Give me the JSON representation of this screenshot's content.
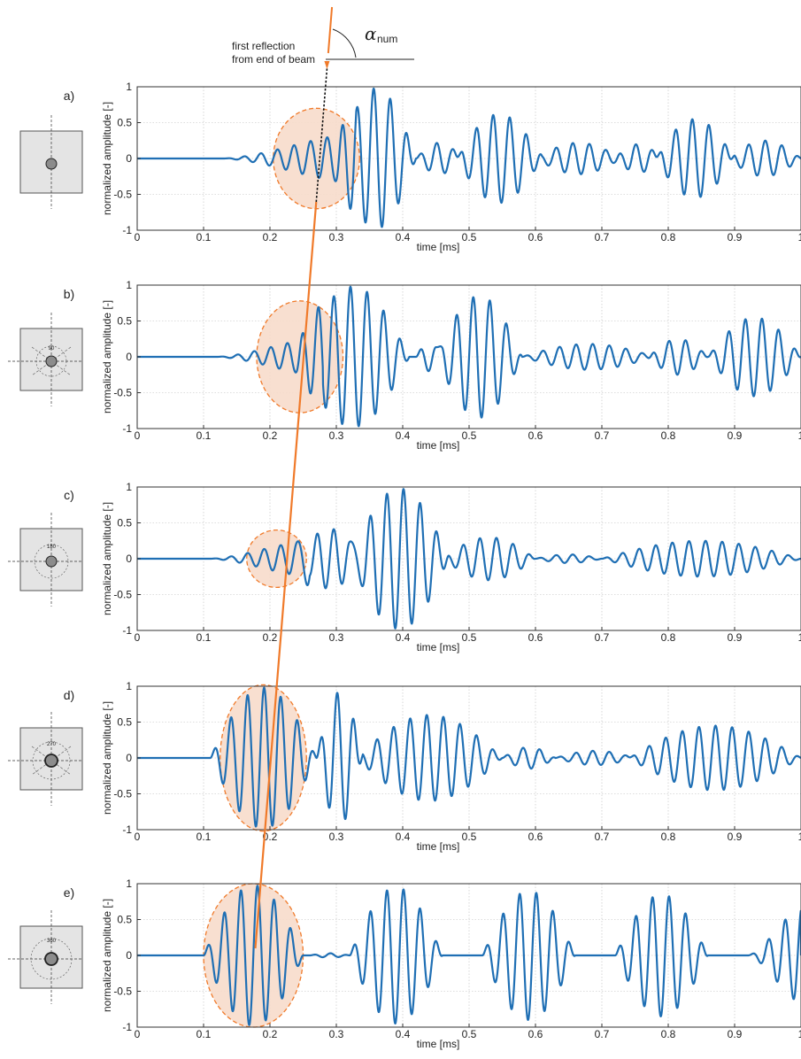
{
  "annotation": {
    "line1": "first reflection",
    "line2": "from end of beam",
    "angle_symbol": "α",
    "angle_subscript": "num"
  },
  "colors": {
    "signal": "#1f6fb4",
    "highlight_fill": "#f7dccb",
    "highlight_stroke": "#f07a2a",
    "trend_line": "#f07a2a",
    "axis": "#333333",
    "inset_fill": "#e4e4e4",
    "bar_fill": "#8c8c8c"
  },
  "icons": [
    "cross-section-icon"
  ],
  "chart_data": [
    {
      "type": "line",
      "panel": "a)",
      "inset_label": "",
      "xlabel": "time [ms]",
      "ylabel": "normalized amplitude [-]",
      "xlim": [
        0,
        1
      ],
      "ylim": [
        -1,
        1
      ],
      "xticks": [
        "0",
        "0.1",
        "0.2",
        "0.3",
        "0.4",
        "0.5",
        "0.6",
        "0.7",
        "0.8",
        "0.9",
        "1"
      ],
      "yticks": [
        "1",
        "0.5",
        "0",
        "-0.5",
        "-1"
      ],
      "grid": true,
      "highlight": {
        "center_x": 0.27,
        "center_y": 0,
        "half_width_x": 0.065,
        "half_height_y": 0.7
      },
      "first_reflection_time_ms": 0.275,
      "bursts": [
        {
          "t0": 0.13,
          "t1": 0.33,
          "amp": 0.45,
          "freq_khz": 40,
          "ramp": "rising"
        },
        {
          "t0": 0.3,
          "t1": 0.42,
          "amp": 0.98,
          "freq_khz": 40
        },
        {
          "t0": 0.42,
          "t1": 0.49,
          "amp": 0.22,
          "freq_khz": 40
        },
        {
          "t0": 0.48,
          "t1": 0.61,
          "amp": 0.62,
          "freq_khz": 40
        },
        {
          "t0": 0.6,
          "t1": 0.73,
          "amp": 0.22,
          "freq_khz": 40
        },
        {
          "t0": 0.72,
          "t1": 0.79,
          "amp": 0.2,
          "freq_khz": 40
        },
        {
          "t0": 0.78,
          "t1": 0.9,
          "amp": 0.55,
          "freq_khz": 40
        },
        {
          "t0": 0.89,
          "t1": 1.0,
          "amp": 0.25,
          "freq_khz": 40
        }
      ]
    },
    {
      "type": "line",
      "panel": "b)",
      "inset_label": "90",
      "xlabel": "time [ms]",
      "ylabel": "normalized amplitude [-]",
      "xlim": [
        0,
        1
      ],
      "ylim": [
        -1,
        1
      ],
      "xticks": [
        "0",
        "0.1",
        "0.2",
        "0.3",
        "0.4",
        "0.5",
        "0.6",
        "0.7",
        "0.8",
        "0.9",
        "1"
      ],
      "yticks": [
        "1",
        "0.5",
        "0",
        "-0.5",
        "-1"
      ],
      "grid": true,
      "highlight": {
        "center_x": 0.245,
        "center_y": 0,
        "half_width_x": 0.065,
        "half_height_y": 0.78
      },
      "first_reflection_time_ms": 0.248,
      "bursts": [
        {
          "t0": 0.12,
          "t1": 0.28,
          "amp": 0.35,
          "freq_khz": 40,
          "ramp": "rising"
        },
        {
          "t0": 0.24,
          "t1": 0.41,
          "amp": 0.98,
          "freq_khz": 40
        },
        {
          "t0": 0.42,
          "t1": 0.46,
          "amp": 0.2,
          "freq_khz": 40
        },
        {
          "t0": 0.45,
          "t1": 0.58,
          "amp": 0.85,
          "freq_khz": 40
        },
        {
          "t0": 0.58,
          "t1": 0.78,
          "amp": 0.18,
          "freq_khz": 40
        },
        {
          "t0": 0.77,
          "t1": 0.86,
          "amp": 0.25,
          "freq_khz": 40
        },
        {
          "t0": 0.86,
          "t1": 1.0,
          "amp": 0.55,
          "freq_khz": 40
        }
      ]
    },
    {
      "type": "line",
      "panel": "c)",
      "inset_label": "180",
      "xlabel": "time [ms]",
      "ylabel": "normalized amplitude [-]",
      "xlim": [
        0,
        1
      ],
      "ylim": [
        -1,
        1
      ],
      "xticks": [
        "0",
        "0.1",
        "0.2",
        "0.3",
        "0.4",
        "0.5",
        "0.6",
        "0.7",
        "0.8",
        "0.9",
        "1"
      ],
      "yticks": [
        "1",
        "0.5",
        "0",
        "-0.5",
        "-1"
      ],
      "grid": true,
      "highlight": {
        "center_x": 0.21,
        "center_y": 0,
        "half_width_x": 0.045,
        "half_height_y": 0.4
      },
      "first_reflection_time_ms": 0.212,
      "bursts": [
        {
          "t0": 0.11,
          "t1": 0.26,
          "amp": 0.32,
          "freq_khz": 40,
          "ramp": "rising"
        },
        {
          "t0": 0.24,
          "t1": 0.34,
          "amp": 0.42,
          "freq_khz": 40
        },
        {
          "t0": 0.32,
          "t1": 0.47,
          "amp": 0.98,
          "freq_khz": 40
        },
        {
          "t0": 0.46,
          "t1": 0.6,
          "amp": 0.3,
          "freq_khz": 40
        },
        {
          "t0": 0.6,
          "t1": 0.7,
          "amp": 0.06,
          "freq_khz": 40
        },
        {
          "t0": 0.7,
          "t1": 1.0,
          "amp": 0.25,
          "freq_khz": 40
        }
      ]
    },
    {
      "type": "line",
      "panel": "d)",
      "inset_label": "270",
      "xlabel": "time [ms]",
      "ylabel": "normalized amplitude [-]",
      "xlim": [
        0,
        1
      ],
      "ylim": [
        -1,
        1
      ],
      "xticks": [
        "0",
        "0.1",
        "0.2",
        "0.3",
        "0.4",
        "0.5",
        "0.6",
        "0.7",
        "0.8",
        "0.9",
        "1"
      ],
      "yticks": [
        "1",
        "0.5",
        "0",
        "-0.5",
        "-1"
      ],
      "grid": true,
      "highlight": {
        "center_x": 0.19,
        "center_y": 0,
        "half_width_x": 0.065,
        "half_height_y": 1.02
      },
      "first_reflection_time_ms": 0.195,
      "bursts": [
        {
          "t0": 0.11,
          "t1": 0.27,
          "amp": 0.98,
          "freq_khz": 40
        },
        {
          "t0": 0.27,
          "t1": 0.34,
          "amp": 0.92,
          "freq_khz": 40
        },
        {
          "t0": 0.33,
          "t1": 0.55,
          "amp": 0.6,
          "freq_khz": 40
        },
        {
          "t0": 0.55,
          "t1": 0.63,
          "amp": 0.15,
          "freq_khz": 40
        },
        {
          "t0": 0.63,
          "t1": 0.75,
          "amp": 0.1,
          "freq_khz": 40
        },
        {
          "t0": 0.74,
          "t1": 1.0,
          "amp": 0.45,
          "freq_khz": 40
        }
      ]
    },
    {
      "type": "line",
      "panel": "e)",
      "inset_label": "360",
      "xlabel": "time [ms]",
      "ylabel": "normalized amplitude [-]",
      "xlim": [
        0,
        1
      ],
      "ylim": [
        -1,
        1
      ],
      "xticks": [
        "0",
        "0.1",
        "0.2",
        "0.3",
        "0.4",
        "0.5",
        "0.6",
        "0.7",
        "0.8",
        "0.9",
        "1"
      ],
      "yticks": [
        "1",
        "0.5",
        "0",
        "-0.5",
        "-1"
      ],
      "grid": true,
      "highlight": {
        "center_x": 0.175,
        "center_y": 0,
        "half_width_x": 0.075,
        "half_height_y": 1.0
      },
      "first_reflection_time_ms": 0.178,
      "bursts": [
        {
          "t0": 0.1,
          "t1": 0.25,
          "amp": 0.98,
          "freq_khz": 40
        },
        {
          "t0": 0.26,
          "t1": 0.32,
          "amp": 0.03,
          "freq_khz": 40
        },
        {
          "t0": 0.32,
          "t1": 0.46,
          "amp": 0.95,
          "freq_khz": 40
        },
        {
          "t0": 0.52,
          "t1": 0.66,
          "amp": 0.9,
          "freq_khz": 40
        },
        {
          "t0": 0.72,
          "t1": 0.86,
          "amp": 0.85,
          "freq_khz": 40
        },
        {
          "t0": 0.92,
          "t1": 1.0,
          "amp": 0.85,
          "freq_khz": 40,
          "ramp": "rising"
        }
      ]
    }
  ]
}
